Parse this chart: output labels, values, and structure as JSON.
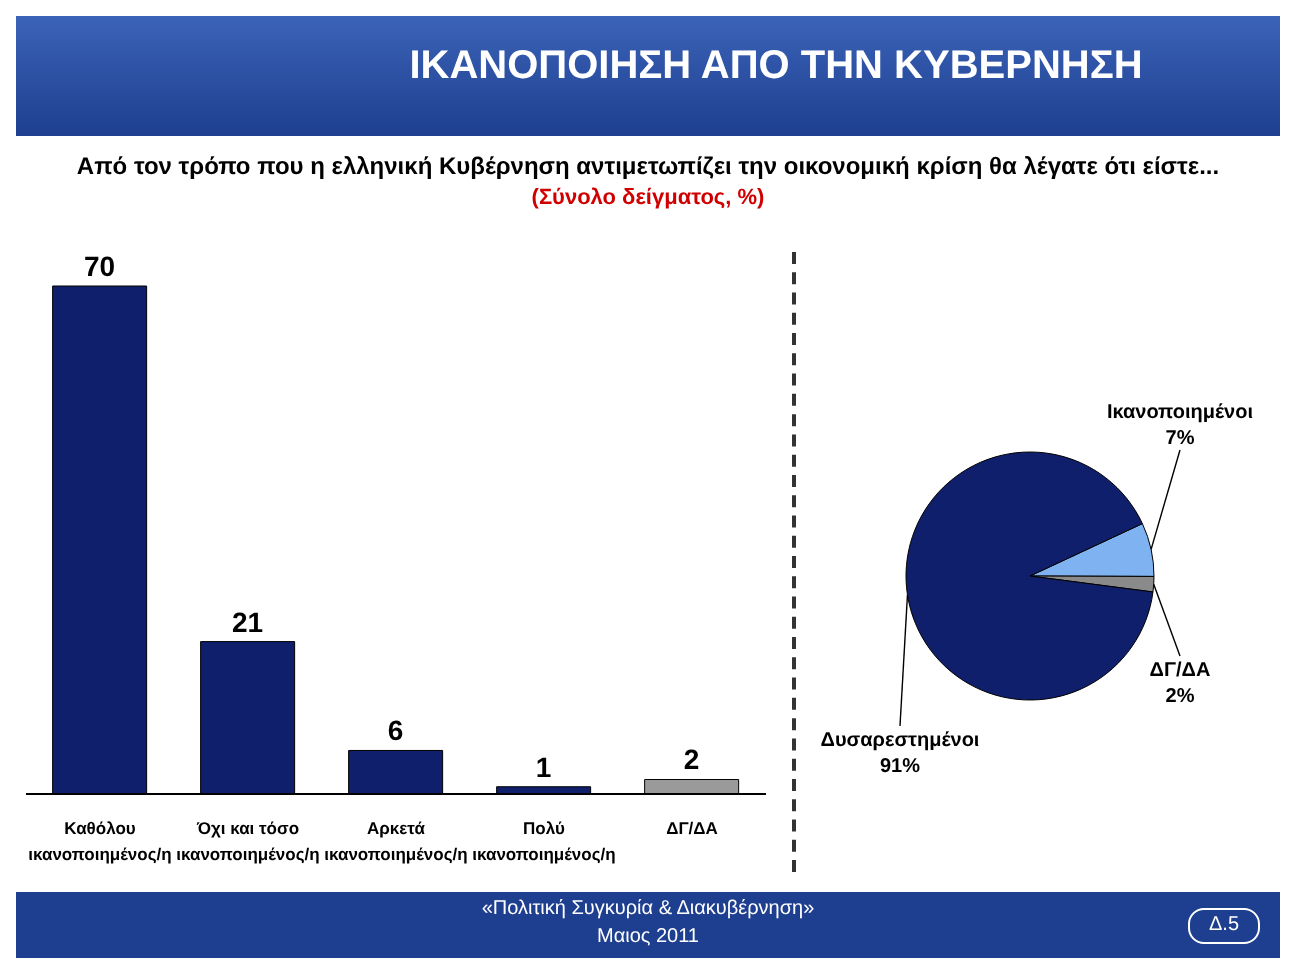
{
  "chart_data": [
    {
      "type": "bar",
      "title": "ΙΚΑΝΟΠΟΙΗΣΗ ΑΠΟ ΤΗΝ ΚΥΒΕΡΝΗΣΗ",
      "subtitle": "Από τον τρόπο που η ελληνική Κυβέρνηση αντιμετωπίζει την οικονομική κρίση θα λέγατε ότι είστε...",
      "annotations": [
        "(Σύνολο δείγματος, %)",
        "«Πολιτική Συγκυρία & Διακυβέρνηση»",
        "Μαιος 2011",
        "Δ.5"
      ],
      "categories": [
        "Καθόλου ικανοποιημένος/η",
        "Όχι και τόσο ικανοποιημένος/η",
        "Αρκετά ικανοποιημένος/η",
        "Πολύ ικανοποιημένος/η",
        "ΔΓ/ΔΑ"
      ],
      "values": [
        70,
        21,
        6,
        1,
        2
      ],
      "colors": [
        "#0f1f6b",
        "#0f1f6b",
        "#0f1f6b",
        "#0f1f6b",
        "#9a9a9a"
      ],
      "data_labels": true
    },
    {
      "type": "pie",
      "categories": [
        "Ικανοποιημένοι",
        "ΔΓ/ΔΑ",
        "Δυσαρεστημένοι"
      ],
      "values": [
        7,
        2,
        91
      ],
      "colors": [
        "#7fb2f0",
        "#8a8a8a",
        "#0f1f6b"
      ],
      "value_labels": [
        "7%",
        "2%",
        "91%"
      ]
    }
  ]
}
